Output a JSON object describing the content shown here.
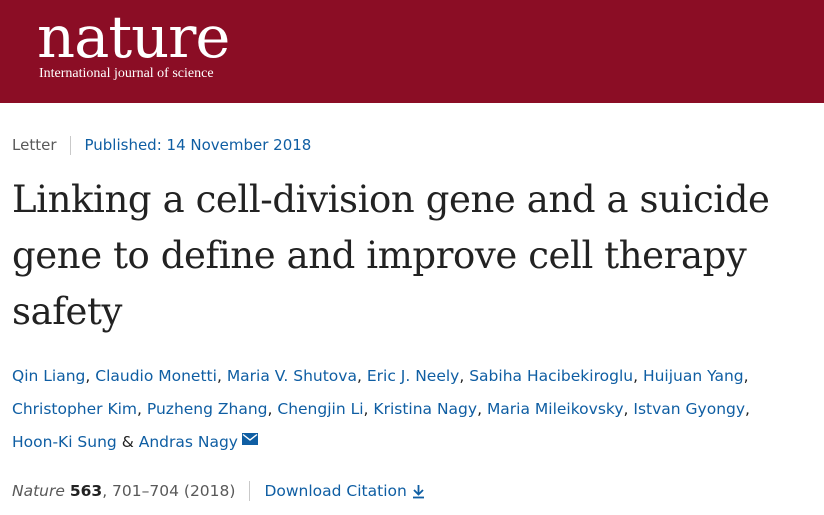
{
  "header": {
    "logo_text": "nature",
    "tagline": "International journal of science",
    "brand_color": "#8b0d25"
  },
  "article": {
    "type": "Letter",
    "published": "Published: 14 November 2018",
    "title": "Linking a cell-division gene and a suicide gene to define and improve cell therapy safety",
    "authors": [
      "Qin Liang",
      "Claudio Monetti",
      "Maria V. Shutova",
      "Eric J. Neely",
      "Sabiha Hacibekiroglu",
      "Huijuan Yang",
      "Christopher Kim",
      "Puzheng Zhang",
      "Chengjin Li",
      "Kristina Nagy",
      "Maria Mileikovsky",
      "Istvan Gyongy",
      "Hoon-Ki Sung",
      "Andras Nagy"
    ],
    "separators": {
      "comma": ",",
      "and": "&"
    },
    "contact_icon": "envelope-icon",
    "citation": {
      "journal": "Nature",
      "volume": "563",
      "pages": ", 701–704 (2018)",
      "download_label": "Download Citation",
      "download_icon": "download-arrow-icon"
    },
    "link_color": "#0f5ea3"
  }
}
